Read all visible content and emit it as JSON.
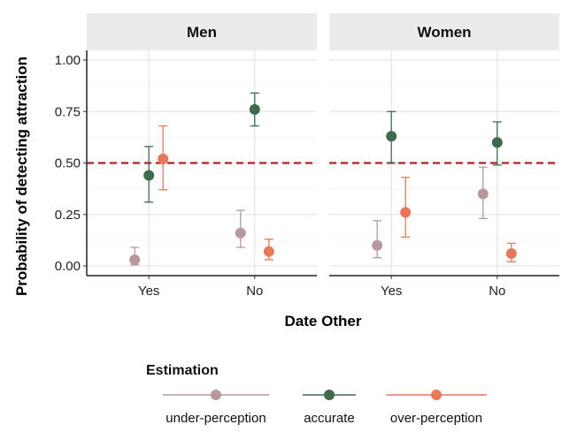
{
  "chart_data": {
    "type": "scatter",
    "subtype": "point-with-error-bars, faceted",
    "xlabel": "Date Other",
    "ylabel": "Probability of detecting attraction",
    "ylim": [
      0,
      1
    ],
    "yticks": [
      "0.00",
      "0.25",
      "0.50",
      "0.75",
      "1.00"
    ],
    "categories": [
      "Yes",
      "No"
    ],
    "reference_line": {
      "y": 0.5,
      "style": "dashed",
      "color": "#b22222"
    },
    "grid": true,
    "legend": {
      "title": "Estimation",
      "placement": "bottom"
    },
    "colors": {
      "under-perception": "#b8989c",
      "accurate": "#3e6b4e",
      "over-perception": "#e8785a"
    },
    "facets": [
      {
        "label": "Men",
        "series": [
          {
            "name": "under-perception",
            "values": [
              0.03,
              0.16
            ],
            "lower": [
              0.005,
              0.09
            ],
            "upper": [
              0.09,
              0.27
            ]
          },
          {
            "name": "accurate",
            "values": [
              0.44,
              0.76
            ],
            "lower": [
              0.31,
              0.68
            ],
            "upper": [
              0.58,
              0.84
            ]
          },
          {
            "name": "over-perception",
            "values": [
              0.52,
              0.07
            ],
            "lower": [
              0.37,
              0.03
            ],
            "upper": [
              0.68,
              0.13
            ]
          }
        ]
      },
      {
        "label": "Women",
        "series": [
          {
            "name": "under-perception",
            "values": [
              0.1,
              0.35
            ],
            "lower": [
              0.04,
              0.23
            ],
            "upper": [
              0.22,
              0.48
            ]
          },
          {
            "name": "accurate",
            "values": [
              0.63,
              0.6
            ],
            "lower": [
              0.5,
              0.49
            ],
            "upper": [
              0.75,
              0.7
            ]
          },
          {
            "name": "over-perception",
            "values": [
              0.26,
              0.06
            ],
            "lower": [
              0.14,
              0.02
            ],
            "upper": [
              0.43,
              0.11
            ]
          }
        ]
      }
    ]
  }
}
